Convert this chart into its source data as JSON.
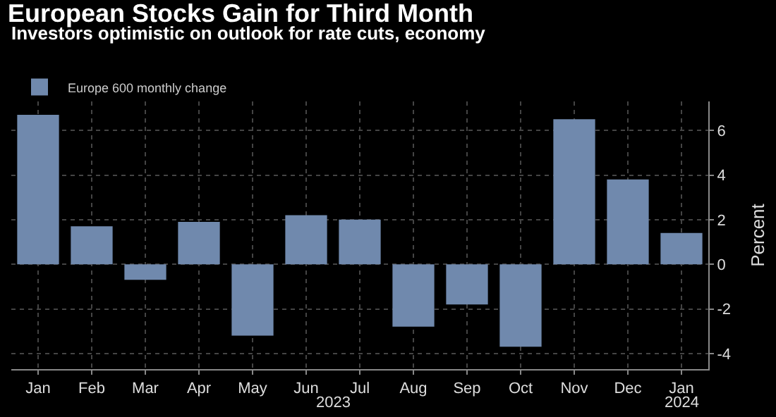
{
  "chart_data": {
    "type": "bar",
    "title": "European Stocks Gain for Third Month",
    "subtitle": "Investors optimistic on outlook for rate cuts, economy",
    "ylabel": "Percent",
    "categories": [
      "Jan",
      "Feb",
      "Mar",
      "Apr",
      "May",
      "Jun",
      "Jul",
      "Aug",
      "Sep",
      "Oct",
      "Nov",
      "Dec",
      "Jan"
    ],
    "series": [
      {
        "name": "Europe 600 monthly change",
        "color": "#7089ad",
        "values": [
          6.7,
          1.7,
          -0.7,
          1.9,
          -3.2,
          2.2,
          2.0,
          -2.8,
          -1.8,
          -3.7,
          6.5,
          3.8,
          1.4
        ]
      }
    ],
    "annotations": [
      "2023",
      "2024"
    ],
    "ylim": [
      -4.7,
      7.3
    ],
    "yticks": [
      -4,
      -2,
      0,
      2,
      4,
      6
    ],
    "grid": true,
    "legend": "top left"
  }
}
